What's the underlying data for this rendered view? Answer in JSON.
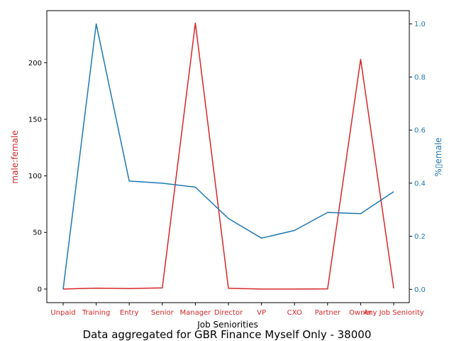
{
  "chart_data": {
    "type": "line",
    "title": "",
    "caption": "Data aggregated for GBR Finance Myself Only - 38000",
    "xlabel": "Job Seniorities",
    "categories": [
      "Unpaid",
      "Training",
      "Entry",
      "Senior",
      "Manager",
      "Director",
      "VP",
      "CXO",
      "Partner",
      "Owner",
      "Any Job Seniority"
    ],
    "series": [
      {
        "name": "male:female",
        "axis": "left",
        "color": "#d62728",
        "values": [
          0,
          0.8,
          0.5,
          1.0,
          235,
          0.7,
          0.0,
          0.0,
          0.2,
          203,
          0.6
        ]
      },
      {
        "name": "%female",
        "axis": "right",
        "color": "#1f77b4",
        "values": [
          0.0,
          1.0,
          0.408,
          0.4,
          0.385,
          0.267,
          0.193,
          0.222,
          0.29,
          0.285,
          0.368
        ]
      }
    ],
    "left_axis": {
      "label": "male:female",
      "ylim": [
        -12,
        246
      ],
      "ticks": [
        0,
        50,
        100,
        150,
        200
      ],
      "tick_labels": [
        "0",
        "50",
        "100",
        "150",
        "200"
      ],
      "color": "#d62728"
    },
    "right_axis": {
      "label": "%▯emale",
      "ylim": [
        -0.05,
        1.05
      ],
      "ticks": [
        0.0,
        0.2,
        0.4,
        0.6,
        0.8,
        1.0
      ],
      "tick_labels": [
        "0.0",
        "0.2",
        "0.4",
        "0.6",
        "0.8",
        "1.0"
      ],
      "color": "#1f77b4"
    },
    "grid": false,
    "legend": "none"
  }
}
